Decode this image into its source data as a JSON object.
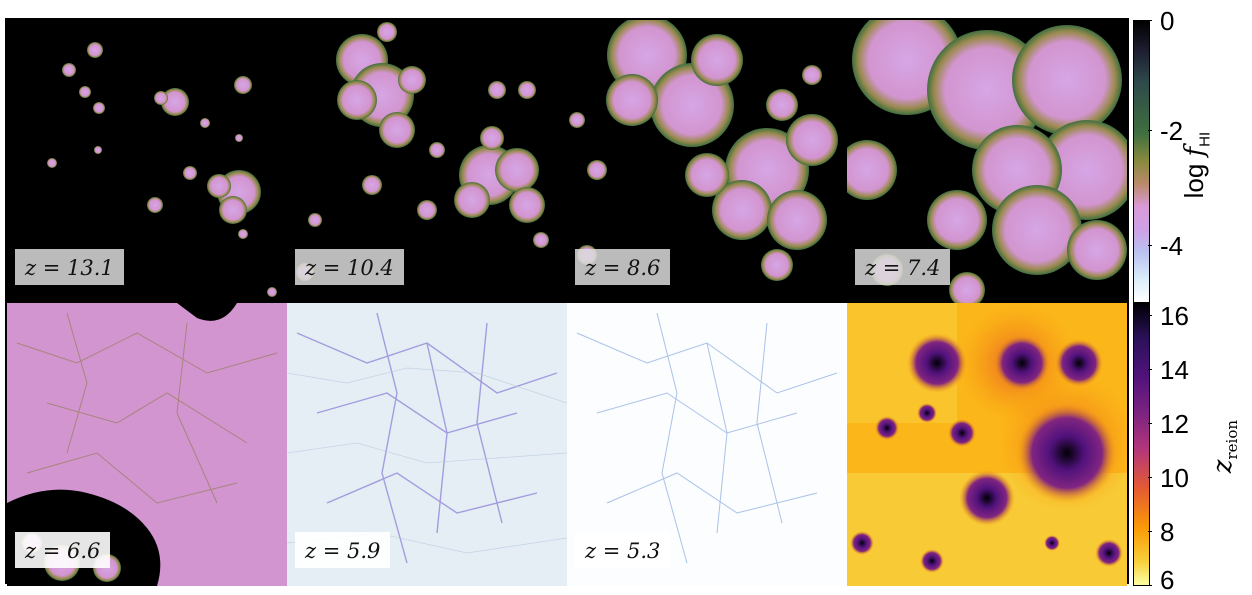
{
  "panels": [
    {
      "z_label": "z = 13.1"
    },
    {
      "z_label": "z = 10.4"
    },
    {
      "z_label": "z = 8.6"
    },
    {
      "z_label": "z = 7.4"
    },
    {
      "z_label": "z = 6.6"
    },
    {
      "z_label": "z = 5.9"
    },
    {
      "z_label": "z = 5.3"
    }
  ],
  "colorbar_fhi": {
    "label_prefix": "log ",
    "label_var": "f",
    "label_sub": "HI",
    "ticks": [
      "0",
      "-2",
      "-4"
    ]
  },
  "colorbar_zreion": {
    "label_var": "z",
    "label_sub": "reion",
    "ticks": [
      "16",
      "14",
      "12",
      "10",
      "8",
      "6"
    ]
  }
}
